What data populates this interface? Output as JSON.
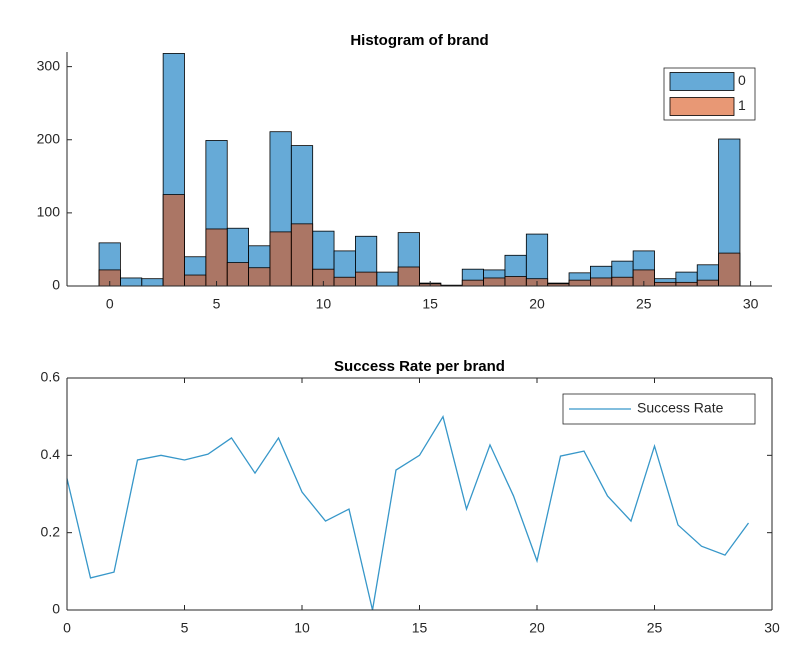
{
  "chart_data": [
    {
      "type": "histogram",
      "title": "Histogram of brand",
      "bins": [
        -0.5,
        0.5,
        1.5,
        2.5,
        3.5,
        4.5,
        5.5,
        6.5,
        7.5,
        8.5,
        9.5,
        10.5,
        11.5,
        12.5,
        13.5,
        14.5,
        15.5,
        16.5,
        17.5,
        18.5,
        19.5,
        20.5,
        21.5,
        22.5,
        23.5,
        24.5,
        25.5,
        26.5,
        27.5,
        28.5,
        29.5
      ],
      "series": [
        {
          "name": "0",
          "color": "#0072bd",
          "values": [
            59,
            11,
            10,
            318,
            40,
            199,
            79,
            55,
            211,
            192,
            75,
            48,
            68,
            19,
            73,
            4,
            1,
            23,
            22,
            42,
            71,
            4,
            18,
            27,
            34,
            48,
            10,
            19,
            29,
            201
          ]
        },
        {
          "name": "1",
          "color": "#d95319",
          "values": [
            22,
            0,
            0,
            125,
            15,
            78,
            32,
            25,
            74,
            85,
            23,
            12,
            19,
            0,
            26,
            3,
            1,
            8,
            11,
            13,
            10,
            3,
            8,
            11,
            12,
            22,
            5,
            5,
            8,
            45
          ]
        }
      ],
      "face_alpha": 0.6,
      "xlim": [
        -2,
        31
      ],
      "xticks": [
        0,
        5,
        10,
        15,
        20,
        25,
        30
      ],
      "ylim": [
        0,
        320
      ],
      "yticks": [
        0,
        100,
        200,
        300
      ],
      "legend": "northeast",
      "box": false
    },
    {
      "type": "line",
      "title": "Success Rate per brand",
      "x": [
        0,
        1,
        2,
        3,
        4,
        5,
        6,
        7,
        8,
        9,
        10,
        11,
        12,
        13,
        14,
        15,
        16,
        17,
        18,
        19,
        20,
        21,
        22,
        23,
        24,
        25,
        26,
        27,
        28,
        29
      ],
      "series": [
        {
          "name": "Success Rate",
          "color": "#3797c9",
          "values": [
            0.34,
            0.083,
            0.098,
            0.388,
            0.4,
            0.388,
            0.403,
            0.445,
            0.354,
            0.445,
            0.305,
            0.23,
            0.261,
            0,
            0.362,
            0.4,
            0.5,
            0.261,
            0.427,
            0.295,
            0.127,
            0.398,
            0.411,
            0.295,
            0.23,
            0.424,
            0.22,
            0.165,
            0.142,
            0.225
          ]
        }
      ],
      "xlim": [
        0,
        30
      ],
      "xticks": [
        0,
        5,
        10,
        15,
        20,
        25,
        30
      ],
      "ylim": [
        0,
        0.6
      ],
      "yticks": [
        0,
        0.2,
        0.4,
        0.6
      ],
      "legend": "northeast",
      "box": true
    }
  ]
}
